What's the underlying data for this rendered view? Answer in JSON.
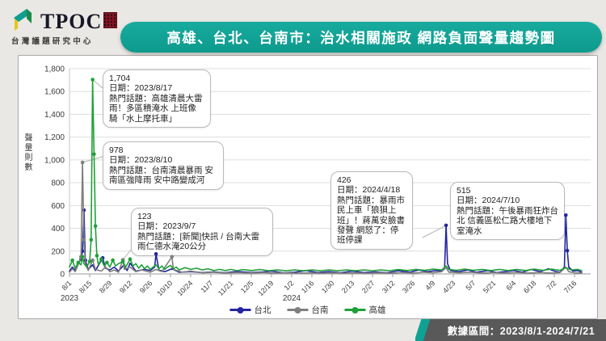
{
  "header": {
    "logo": {
      "text": "TPOC",
      "subtext": "台灣議題研究中心"
    },
    "title": "高雄、台北、台南市：治水相關施政 網路負面聲量趨勢圖"
  },
  "footer": {
    "label": "數據區間：2023/8/1-2024/7/21"
  },
  "chart_data": {
    "type": "line",
    "title": "高雄、台北、台南市：治水相關施政 網路負面聲量趨勢圖",
    "ylabel": "聲量則數",
    "ylim": [
      0,
      1800
    ],
    "y_ticks": [
      "0",
      "200",
      "400",
      "600",
      "800",
      "1,000",
      "1,200",
      "1,400",
      "1,600",
      "1,800"
    ],
    "x_unit": "date (day offset from 2023/8/1, data range 2023/8/1-2024/7/21)",
    "x_ticks": [
      {
        "label": "8/1",
        "day": 0
      },
      {
        "label": "8/15",
        "day": 14
      },
      {
        "label": "8/29",
        "day": 28
      },
      {
        "label": "9/12",
        "day": 42
      },
      {
        "label": "9/26",
        "day": 56
      },
      {
        "label": "10/10",
        "day": 70
      },
      {
        "label": "10/24",
        "day": 84
      },
      {
        "label": "11/7",
        "day": 98
      },
      {
        "label": "11/21",
        "day": 112
      },
      {
        "label": "12/5",
        "day": 126
      },
      {
        "label": "12/19",
        "day": 140
      },
      {
        "label": "1/2",
        "day": 154
      },
      {
        "label": "1/16",
        "day": 168
      },
      {
        "label": "1/30",
        "day": 182
      },
      {
        "label": "2/13",
        "day": 196
      },
      {
        "label": "2/27",
        "day": 210
      },
      {
        "label": "3/12",
        "day": 224
      },
      {
        "label": "3/26",
        "day": 238
      },
      {
        "label": "4/9",
        "day": 252
      },
      {
        "label": "4/23",
        "day": 266
      },
      {
        "label": "5/7",
        "day": 280
      },
      {
        "label": "5/21",
        "day": 294
      },
      {
        "label": "6/4",
        "day": 308
      },
      {
        "label": "6/18",
        "day": 322
      },
      {
        "label": "7/2",
        "day": 336
      },
      {
        "label": "7/16",
        "day": 350
      }
    ],
    "year_labels": [
      {
        "label": "2023",
        "day": 0
      },
      {
        "label": "2024",
        "day": 154
      }
    ],
    "legend_position": "bottom",
    "grid": true,
    "series": [
      {
        "name": "台北",
        "color": "#23269e",
        "points": [
          [
            0,
            25
          ],
          [
            2,
            60
          ],
          [
            4,
            30
          ],
          [
            6,
            90
          ],
          [
            8,
            130
          ],
          [
            9,
            200
          ],
          [
            10,
            560
          ],
          [
            11,
            120
          ],
          [
            13,
            40
          ],
          [
            16,
            80
          ],
          [
            18,
            30
          ],
          [
            23,
            140
          ],
          [
            25,
            50
          ],
          [
            28,
            35
          ],
          [
            31,
            60
          ],
          [
            34,
            25
          ],
          [
            37,
            70
          ],
          [
            40,
            30
          ],
          [
            42,
            95
          ],
          [
            46,
            25
          ],
          [
            52,
            40
          ],
          [
            56,
            30
          ],
          [
            59,
            60
          ],
          [
            60,
            175
          ],
          [
            62,
            35
          ],
          [
            66,
            20
          ],
          [
            71,
            45
          ],
          [
            76,
            15
          ],
          [
            84,
            20
          ],
          [
            92,
            12
          ],
          [
            100,
            18
          ],
          [
            108,
            10
          ],
          [
            116,
            22
          ],
          [
            126,
            12
          ],
          [
            134,
            18
          ],
          [
            140,
            25
          ],
          [
            148,
            10
          ],
          [
            156,
            15
          ],
          [
            164,
            30
          ],
          [
            172,
            12
          ],
          [
            180,
            20
          ],
          [
            188,
            10
          ],
          [
            196,
            25
          ],
          [
            204,
            12
          ],
          [
            212,
            18
          ],
          [
            220,
            10
          ],
          [
            228,
            28
          ],
          [
            236,
            15
          ],
          [
            242,
            35
          ],
          [
            248,
            20
          ],
          [
            254,
            30
          ],
          [
            258,
            25
          ],
          [
            260,
            60
          ],
          [
            261,
            426
          ],
          [
            262,
            90
          ],
          [
            264,
            30
          ],
          [
            270,
            20
          ],
          [
            276,
            35
          ],
          [
            282,
            15
          ],
          [
            290,
            30
          ],
          [
            296,
            12
          ],
          [
            302,
            20
          ],
          [
            308,
            30
          ],
          [
            314,
            15
          ],
          [
            320,
            40
          ],
          [
            326,
            20
          ],
          [
            332,
            45
          ],
          [
            336,
            25
          ],
          [
            340,
            15
          ],
          [
            343,
            60
          ],
          [
            344,
            515
          ],
          [
            345,
            205
          ],
          [
            346,
            60
          ],
          [
            349,
            25
          ],
          [
            352,
            30
          ],
          [
            355,
            15
          ]
        ]
      },
      {
        "name": "台南",
        "color": "#7f7f7f",
        "points": [
          [
            0,
            15
          ],
          [
            2,
            45
          ],
          [
            4,
            20
          ],
          [
            6,
            80
          ],
          [
            8,
            150
          ],
          [
            9,
            978
          ],
          [
            10,
            300
          ],
          [
            11,
            90
          ],
          [
            13,
            30
          ],
          [
            16,
            120
          ],
          [
            18,
            40
          ],
          [
            22,
            25
          ],
          [
            25,
            60
          ],
          [
            28,
            20
          ],
          [
            31,
            35
          ],
          [
            34,
            15
          ],
          [
            37,
            123
          ],
          [
            38,
            40
          ],
          [
            42,
            60
          ],
          [
            46,
            20
          ],
          [
            50,
            35
          ],
          [
            56,
            15
          ],
          [
            60,
            40
          ],
          [
            64,
            20
          ],
          [
            71,
            150
          ],
          [
            72,
            40
          ],
          [
            78,
            15
          ],
          [
            84,
            25
          ],
          [
            92,
            10
          ],
          [
            100,
            15
          ],
          [
            108,
            8
          ],
          [
            116,
            12
          ],
          [
            126,
            8
          ],
          [
            134,
            12
          ],
          [
            142,
            8
          ],
          [
            150,
            10
          ],
          [
            158,
            6
          ],
          [
            166,
            10
          ],
          [
            174,
            6
          ],
          [
            182,
            10
          ],
          [
            190,
            6
          ],
          [
            198,
            10
          ],
          [
            206,
            6
          ],
          [
            214,
            10
          ],
          [
            222,
            6
          ],
          [
            230,
            12
          ],
          [
            238,
            8
          ],
          [
            246,
            15
          ],
          [
            252,
            10
          ],
          [
            258,
            20
          ],
          [
            261,
            55
          ],
          [
            263,
            15
          ],
          [
            270,
            10
          ],
          [
            278,
            15
          ],
          [
            286,
            8
          ],
          [
            294,
            12
          ],
          [
            302,
            8
          ],
          [
            310,
            12
          ],
          [
            318,
            8
          ],
          [
            326,
            12
          ],
          [
            334,
            8
          ],
          [
            340,
            12
          ],
          [
            344,
            60
          ],
          [
            346,
            20
          ],
          [
            350,
            10
          ],
          [
            355,
            8
          ]
        ]
      },
      {
        "name": "高雄",
        "color": "#1fa039",
        "points": [
          [
            0,
            60
          ],
          [
            2,
            120
          ],
          [
            4,
            50
          ],
          [
            6,
            100
          ],
          [
            8,
            80
          ],
          [
            9,
            150
          ],
          [
            10,
            90
          ],
          [
            12,
            60
          ],
          [
            14,
            110
          ],
          [
            15,
            300
          ],
          [
            16,
            1704
          ],
          [
            17,
            1050
          ],
          [
            18,
            420
          ],
          [
            19,
            160
          ],
          [
            20,
            80
          ],
          [
            22,
            130
          ],
          [
            24,
            70
          ],
          [
            26,
            100
          ],
          [
            28,
            60
          ],
          [
            30,
            120
          ],
          [
            32,
            70
          ],
          [
            34,
            90
          ],
          [
            37,
            110
          ],
          [
            39,
            60
          ],
          [
            42,
            130
          ],
          [
            44,
            70
          ],
          [
            46,
            90
          ],
          [
            48,
            50
          ],
          [
            50,
            80
          ],
          [
            52,
            45
          ],
          [
            54,
            70
          ],
          [
            56,
            40
          ],
          [
            58,
            60
          ],
          [
            60,
            80
          ],
          [
            62,
            45
          ],
          [
            64,
            70
          ],
          [
            66,
            40
          ],
          [
            68,
            60
          ],
          [
            70,
            75
          ],
          [
            72,
            45
          ],
          [
            74,
            60
          ],
          [
            76,
            35
          ],
          [
            80,
            55
          ],
          [
            84,
            40
          ],
          [
            88,
            50
          ],
          [
            92,
            35
          ],
          [
            96,
            45
          ],
          [
            100,
            30
          ],
          [
            104,
            40
          ],
          [
            108,
            30
          ],
          [
            112,
            40
          ],
          [
            116,
            28
          ],
          [
            120,
            38
          ],
          [
            126,
            30
          ],
          [
            132,
            38
          ],
          [
            138,
            28
          ],
          [
            144,
            35
          ],
          [
            150,
            28
          ],
          [
            156,
            35
          ],
          [
            162,
            28
          ],
          [
            168,
            35
          ],
          [
            174,
            28
          ],
          [
            180,
            35
          ],
          [
            186,
            28
          ],
          [
            192,
            35
          ],
          [
            198,
            28
          ],
          [
            204,
            35
          ],
          [
            210,
            28
          ],
          [
            216,
            35
          ],
          [
            222,
            28
          ],
          [
            228,
            38
          ],
          [
            234,
            30
          ],
          [
            240,
            40
          ],
          [
            246,
            32
          ],
          [
            252,
            42
          ],
          [
            258,
            35
          ],
          [
            261,
            70
          ],
          [
            263,
            40
          ],
          [
            268,
            32
          ],
          [
            274,
            42
          ],
          [
            280,
            32
          ],
          [
            286,
            40
          ],
          [
            292,
            30
          ],
          [
            298,
            40
          ],
          [
            304,
            30
          ],
          [
            310,
            40
          ],
          [
            316,
            30
          ],
          [
            322,
            42
          ],
          [
            328,
            32
          ],
          [
            334,
            42
          ],
          [
            340,
            32
          ],
          [
            344,
            55
          ],
          [
            348,
            35
          ],
          [
            352,
            40
          ],
          [
            355,
            30
          ]
        ]
      }
    ],
    "annotations": [
      {
        "value": "1,704",
        "date_line": "日期：2023/8/17",
        "topic_line": "熱門話題：高雄清晨大雷雨！多區積淹水 上班像騎「水上摩托車」",
        "series": "高雄",
        "day": 16,
        "peak": 1704
      },
      {
        "value": "978",
        "date_line": "日期：2023/8/10",
        "topic_line": "熱門話題：台南清晨暴雨 安南區強降雨 安中路變成河",
        "series": "台南",
        "day": 9,
        "peak": 978
      },
      {
        "value": "123",
        "date_line": "日期：2023/9/7",
        "topic_line": "熱門話題：[新聞]快訊 / 台南大雷雨仁德水淹20公分",
        "series": "台南",
        "day": 37,
        "peak": 123
      },
      {
        "value": "426",
        "date_line": "日期：2024/4/18",
        "topic_line": "熱門話題：暴雨市民上車「狼狽上班」！蔣萬安臉書發聲 網怒了：停班停課",
        "series": "台北",
        "day": 261,
        "peak": 426
      },
      {
        "value": "515",
        "date_line": "日期：2024/7/10",
        "topic_line": "熱門話題：午後暴雨狂炸台北 信義區松仁路大樓地下室淹水",
        "series": "台北",
        "day": 344,
        "peak": 515
      }
    ]
  }
}
